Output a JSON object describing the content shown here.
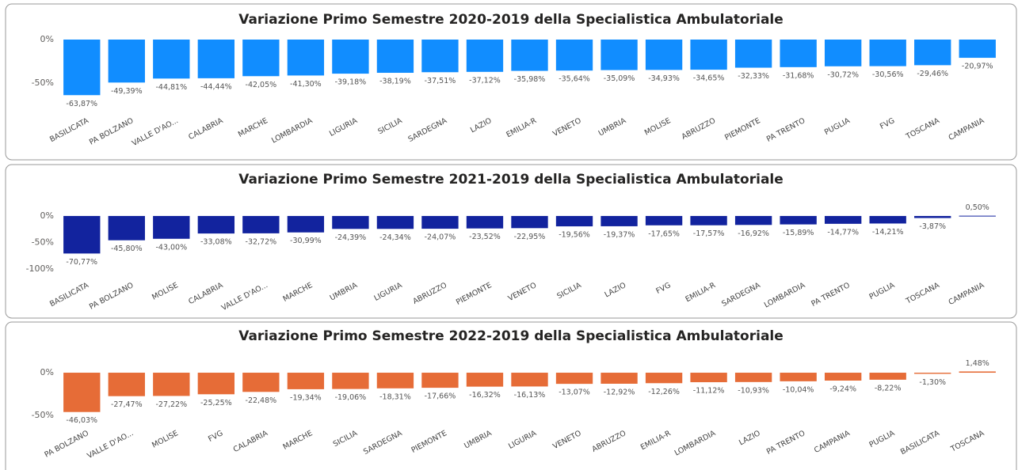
{
  "chart_data": [
    {
      "type": "bar",
      "title": "Variazione Primo Semestre 2020-2019 della Specialistica Ambulatoriale",
      "categories": [
        "BASILICATA",
        "PA BOLZANO",
        "VALLE D'AO...",
        "CALABRIA",
        "MARCHE",
        "LOMBARDIA",
        "LIGURIA",
        "SICILIA",
        "SARDEGNA",
        "LAZIO",
        "EMILIA-R",
        "VENETO",
        "UMBRIA",
        "MOLISE",
        "ABRUZZO",
        "PIEMONTE",
        "PA TRENTO",
        "PUGLIA",
        "FVG",
        "TOSCANA",
        "CAMPANIA"
      ],
      "values": [
        -63.87,
        -49.39,
        -44.81,
        -44.44,
        -42.05,
        -41.3,
        -39.18,
        -38.19,
        -37.51,
        -37.12,
        -35.98,
        -35.64,
        -35.09,
        -34.93,
        -34.65,
        -32.33,
        -31.68,
        -30.72,
        -30.56,
        -29.46,
        -20.97
      ],
      "value_labels": [
        "-63,87%",
        "-49,39%",
        "-44,81%",
        "-44,44%",
        "-42,05%",
        "-41,30%",
        "-39,18%",
        "-38,19%",
        "-37,51%",
        "-37,12%",
        "-35,98%",
        "-35,64%",
        "-35,09%",
        "-34,93%",
        "-34,65%",
        "-32,33%",
        "-31,68%",
        "-30,72%",
        "-30,56%",
        "-29,46%",
        "-20,97%"
      ],
      "color": "#118dff",
      "ylim": [
        -70,
        0
      ],
      "yticks": [
        {
          "value": 0,
          "label": "0%"
        },
        {
          "value": -50,
          "label": "-50%"
        }
      ]
    },
    {
      "type": "bar",
      "title": "Variazione Primo Semestre 2021-2019 della Specialistica Ambulatoriale",
      "categories": [
        "BASILICATA",
        "PA BOLZANO",
        "MOLISE",
        "CALABRIA",
        "VALLE D'AO...",
        "MARCHE",
        "UMBRIA",
        "LIGURIA",
        "ABRUZZO",
        "PIEMONTE",
        "VENETO",
        "SICILIA",
        "LAZIO",
        "FVG",
        "EMILIA-R",
        "SARDEGNA",
        "LOMBARDIA",
        "PA TRENTO",
        "PUGLIA",
        "TOSCANA",
        "CAMPANIA"
      ],
      "values": [
        -70.77,
        -45.8,
        -43.0,
        -33.08,
        -32.72,
        -30.99,
        -24.39,
        -24.34,
        -24.07,
        -23.52,
        -22.95,
        -19.56,
        -19.37,
        -17.65,
        -17.57,
        -16.92,
        -15.89,
        -14.77,
        -14.21,
        -3.87,
        0.5
      ],
      "value_labels": [
        "-70,77%",
        "-45,80%",
        "-43,00%",
        "-33,08%",
        "-32,72%",
        "-30,99%",
        "-24,39%",
        "-24,34%",
        "-24,07%",
        "-23,52%",
        "-22,95%",
        "-19,56%",
        "-19,37%",
        "-17,65%",
        "-17,57%",
        "-16,92%",
        "-15,89%",
        "-14,77%",
        "-14,21%",
        "-3,87%",
        "0,50%"
      ],
      "color": "#12239e",
      "ylim": [
        -100,
        5
      ],
      "yticks": [
        {
          "value": 0,
          "label": "0%"
        },
        {
          "value": -50,
          "label": "-50%"
        },
        {
          "value": -100,
          "label": "-100%"
        }
      ]
    },
    {
      "type": "bar",
      "title": "Variazione Primo Semestre 2022-2019 della Specialistica Ambulatoriale",
      "categories": [
        "PA BOLZANO",
        "VALLE D'AO...",
        "MOLISE",
        "FVG",
        "CALABRIA",
        "MARCHE",
        "SICILIA",
        "SARDEGNA",
        "PIEMONTE",
        "UMBRIA",
        "LIGURIA",
        "VENETO",
        "ABRUZZO",
        "EMILIA-R",
        "LOMBARDIA",
        "LAZIO",
        "PA TRENTO",
        "CAMPANIA",
        "PUGLIA",
        "BASILICATA",
        "TOSCANA"
      ],
      "values": [
        -46.03,
        -27.47,
        -27.22,
        -25.25,
        -22.48,
        -19.34,
        -19.06,
        -18.31,
        -17.66,
        -16.32,
        -16.13,
        -13.07,
        -12.92,
        -12.26,
        -11.12,
        -10.93,
        -10.04,
        -9.24,
        -8.22,
        -1.3,
        1.48
      ],
      "value_labels": [
        "-46,03%",
        "-27,47%",
        "-27,22%",
        "-25,25%",
        "-22,48%",
        "-19,34%",
        "-19,06%",
        "-18,31%",
        "-17,66%",
        "-16,32%",
        "-16,13%",
        "-13,07%",
        "-12,92%",
        "-12,26%",
        "-11,12%",
        "-10,93%",
        "-10,04%",
        "-9,24%",
        "-8,22%",
        "-1,30%",
        "1,48%"
      ],
      "color": "#e66c37",
      "ylim": [
        -50,
        3
      ],
      "yticks": [
        {
          "value": 0,
          "label": "0%"
        },
        {
          "value": -50,
          "label": "-50%"
        }
      ]
    }
  ]
}
